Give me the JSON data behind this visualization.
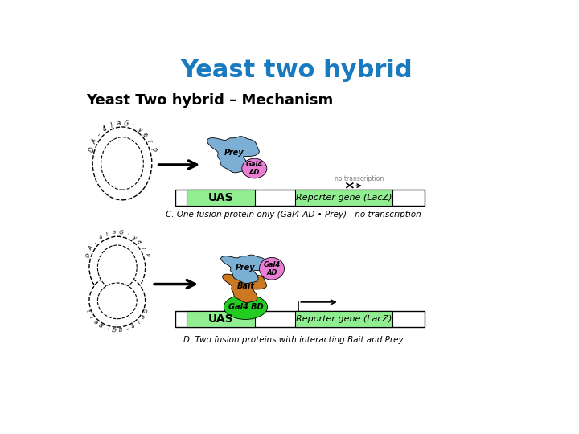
{
  "title": "Yeast two hybrid",
  "subtitle": "Yeast Two hybrid – Mechanism",
  "title_color": "#1a7abf",
  "subtitle_color": "#000000",
  "bg_color": "#ffffff",
  "panel_c_label": "C. One fusion protein only (Gal4-AD • Prey) - no transcription",
  "panel_d_label": "D. Two fusion proteins with interacting Bait and Prey",
  "uas_color": "#90ee90",
  "reporter_color": "#90ee90",
  "prey_blob_color": "#7bafd4",
  "gal4ad_blob_color": "#e87fd4",
  "bait_blob_color": "#cc7722",
  "gal4bd_blob_color": "#22cc22",
  "title_fontsize": 22,
  "subtitle_fontsize": 13
}
